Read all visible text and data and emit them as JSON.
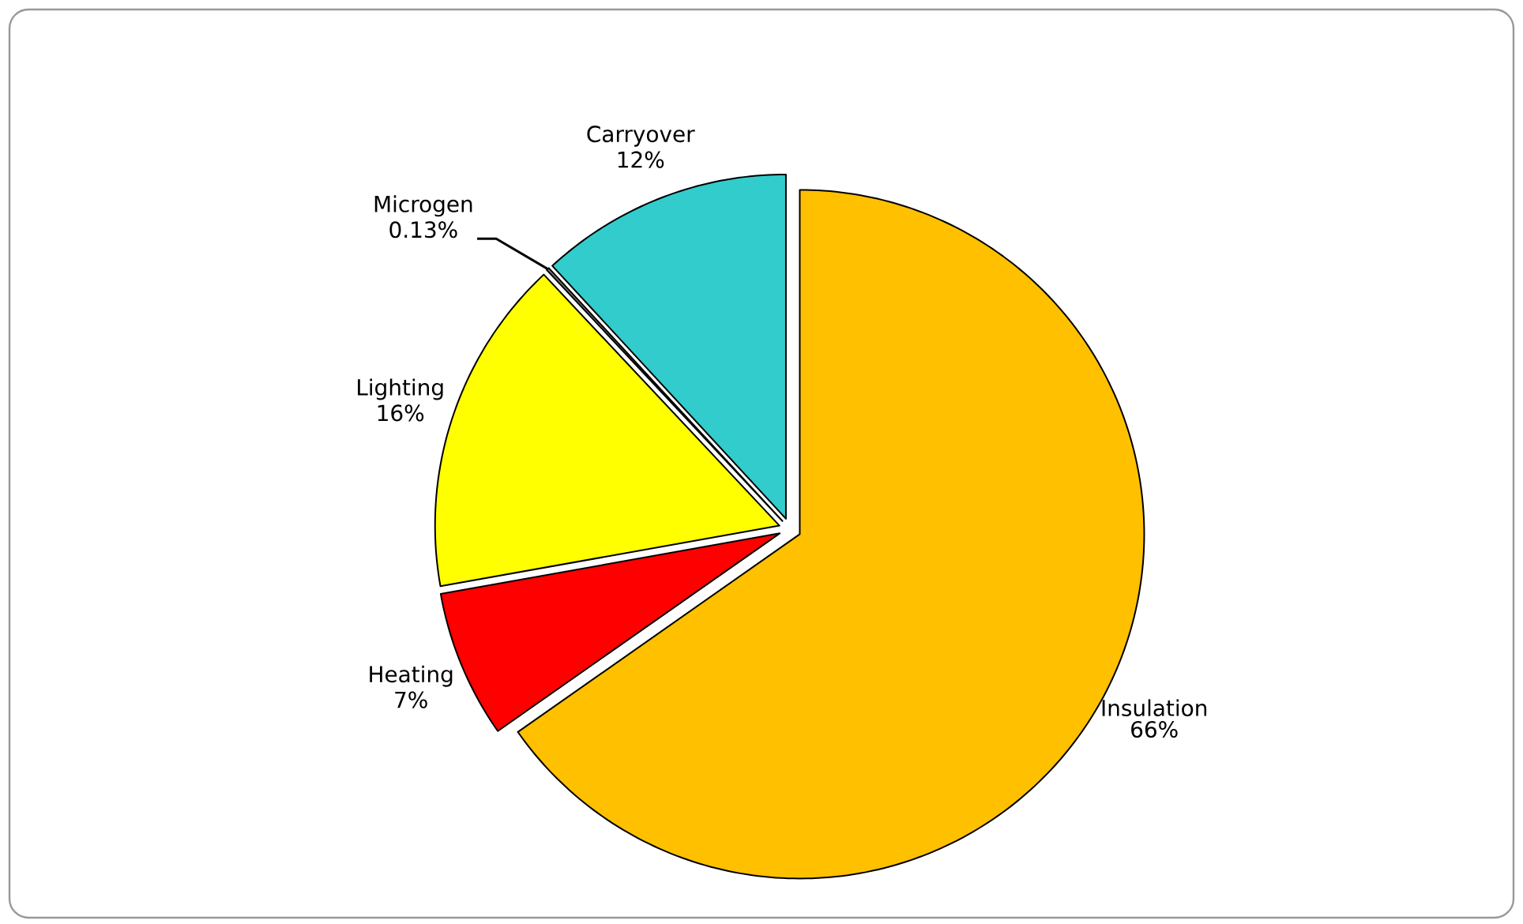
{
  "chart_data": {
    "type": "pie",
    "categories": [
      "Insulation",
      "Heating",
      "Lighting",
      "Microgen",
      "Carryover"
    ],
    "values": [
      66,
      7,
      16,
      0.13,
      12
    ],
    "colors": [
      "#ffc000",
      "#ff0000",
      "#ffff00",
      "#808080",
      "#33cccc"
    ],
    "value_labels": [
      "66%",
      "7%",
      "16%",
      "0.13%",
      "12%"
    ]
  }
}
